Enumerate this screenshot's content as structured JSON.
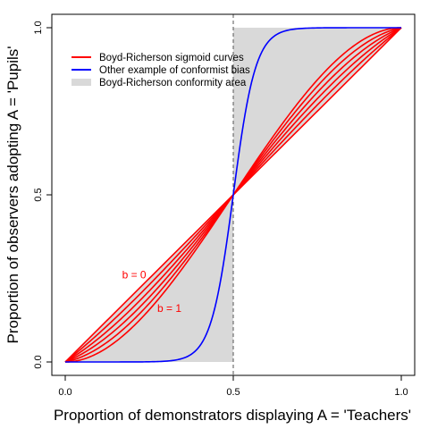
{
  "chart_data": {
    "type": "line",
    "xlabel": "Proportion of demonstrators displaying A = 'Teachers'",
    "ylabel": "Proportion of observers adopting A = 'Pupils'",
    "xlim": [
      0,
      1
    ],
    "ylim": [
      0,
      1
    ],
    "x_ticks": [
      "0.0",
      "0.5",
      "1.0"
    ],
    "y_ticks": [
      "0.0",
      "0.5",
      "1.0"
    ],
    "x_tick_values": [
      0,
      0.5,
      1
    ],
    "y_tick_values": [
      0,
      0.5,
      1
    ],
    "grid": false,
    "legend_position": "top-left",
    "reference_line": {
      "x": 0.5,
      "style": "dashed",
      "color": "#555555"
    },
    "legend": [
      {
        "label": "Boyd-Richerson sigmoid curves",
        "color": "#ff0000",
        "kind": "line"
      },
      {
        "label": "Other example of conformist bias",
        "color": "#0000ff",
        "kind": "line"
      },
      {
        "label": "Boyd-Richerson conformity area",
        "color": "#d9d9d9",
        "kind": "fill"
      }
    ],
    "shaded_area": {
      "label": "Boyd-Richerson conformity area",
      "color": "#d9d9d9",
      "regions": [
        {
          "x": [
            0,
            0.5
          ],
          "lower": 0,
          "upper": "identity"
        },
        {
          "x": [
            0.5,
            1
          ],
          "lower": "identity",
          "upper": 1
        }
      ]
    },
    "series": [
      {
        "family": "boyd-richerson",
        "color": "#ff0000",
        "b": 0
      },
      {
        "family": "boyd-richerson",
        "color": "#ff0000",
        "b": 0.2
      },
      {
        "family": "boyd-richerson",
        "color": "#ff0000",
        "b": 0.4
      },
      {
        "family": "boyd-richerson",
        "color": "#ff0000",
        "b": 0.6
      },
      {
        "family": "boyd-richerson",
        "color": "#ff0000",
        "b": 0.8
      },
      {
        "family": "boyd-richerson",
        "color": "#ff0000",
        "b": 1
      },
      {
        "family": "logistic",
        "color": "#0000ff",
        "steepness": 30,
        "midpoint": 0.5
      }
    ],
    "annotations": [
      {
        "text": "b = 0",
        "x": 0.205,
        "y": 0.25,
        "color": "#ff0000"
      },
      {
        "text": "b = 1",
        "x": 0.31,
        "y": 0.15,
        "color": "#ff0000"
      }
    ]
  }
}
